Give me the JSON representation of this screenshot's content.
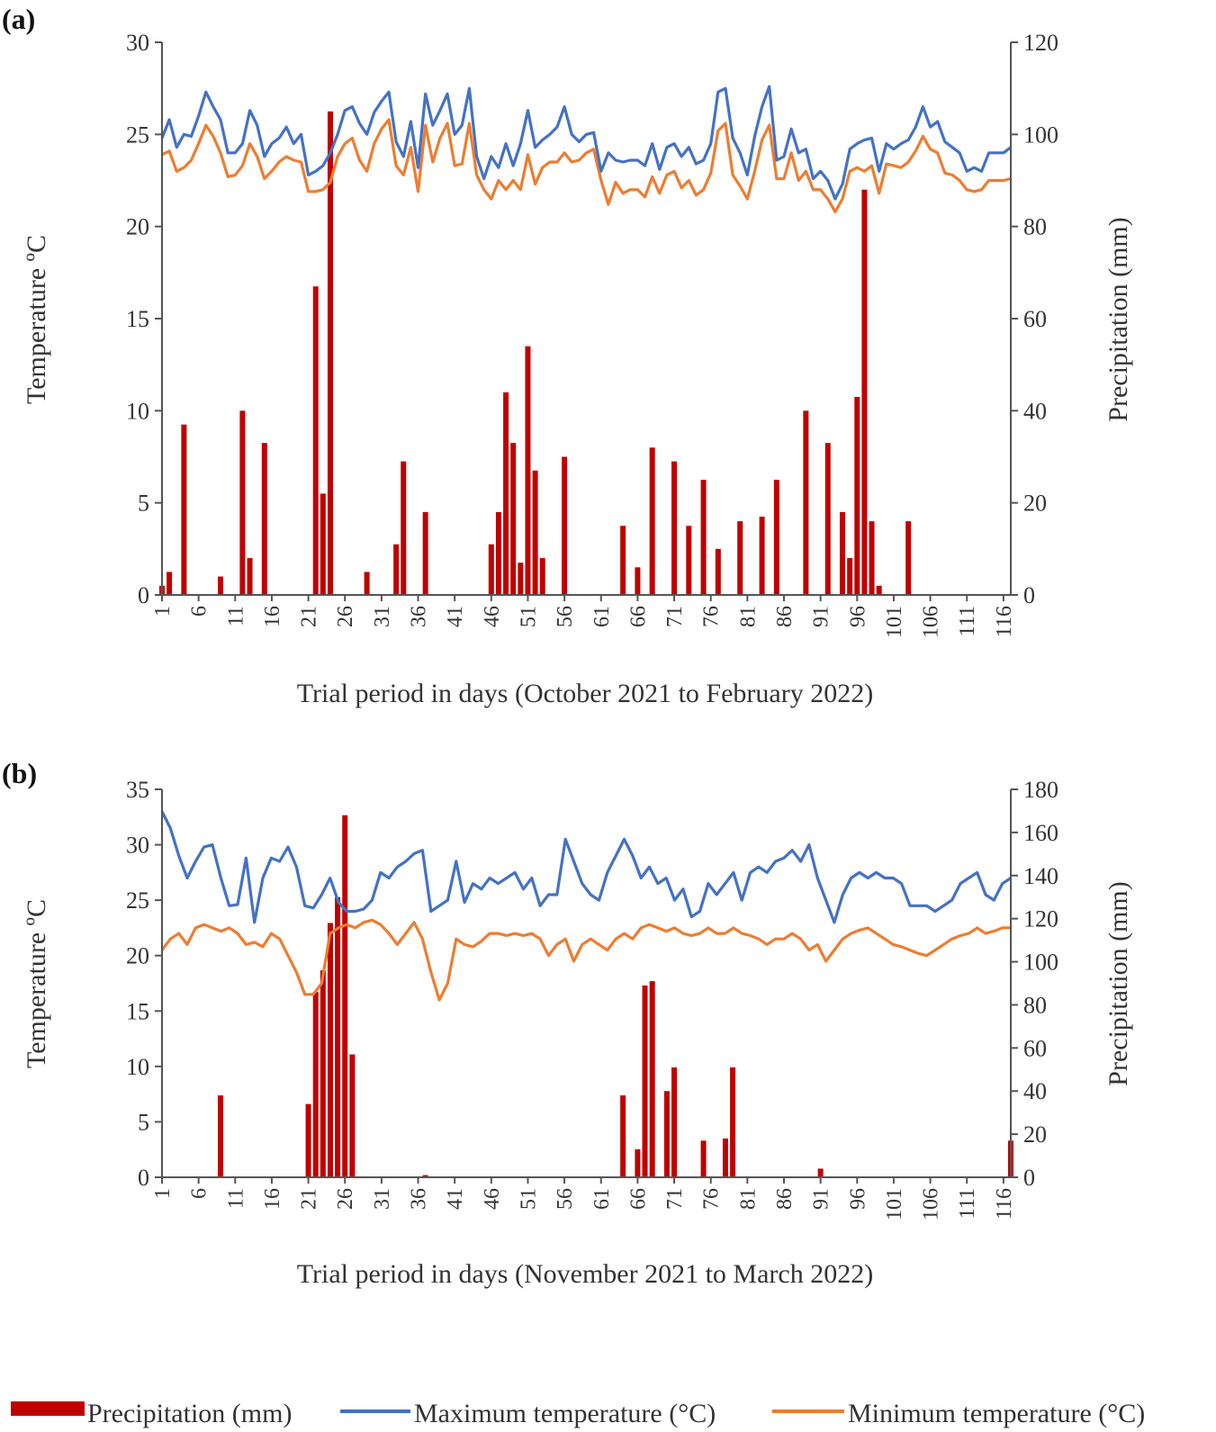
{
  "chart_data": [
    {
      "panel_label": "(a)",
      "type": "bar+line",
      "xlabel": "Trial period in days (October 2021  to February 2022)",
      "ylabel_left": "Temperature ºC",
      "ylabel_right": "Precipitation (mm)",
      "x_range": [
        1,
        117
      ],
      "x_ticks": [
        "1",
        "6",
        "11",
        "16",
        "21",
        "26",
        "31",
        "36",
        "41",
        "46",
        "51",
        "56",
        "61",
        "66",
        "71",
        "76",
        "81",
        "86",
        "91",
        "96",
        "101",
        "106",
        "111",
        "116"
      ],
      "ylim_left": [
        0,
        30
      ],
      "yticks_left": [
        "0",
        "5",
        "10",
        "15",
        "20",
        "25",
        "30"
      ],
      "ylim_right": [
        0,
        120
      ],
      "yticks_right": [
        "0",
        "20",
        "40",
        "60",
        "80",
        "100",
        "120"
      ],
      "series": [
        {
          "name": "Maximum temperature (°C)",
          "type": "line",
          "axis": "left",
          "color": "#4472C4",
          "x": [
            1,
            2,
            3,
            4,
            5,
            6,
            7,
            8,
            9,
            10,
            11,
            12,
            13,
            14,
            15,
            16,
            17,
            18,
            19,
            20,
            21,
            22,
            23,
            24,
            25,
            26,
            27,
            28,
            29,
            30,
            31,
            32,
            33,
            34,
            35,
            36,
            37,
            38,
            39,
            40,
            41,
            42,
            43,
            44,
            45,
            46,
            47,
            48,
            49,
            50,
            51,
            52,
            53,
            54,
            55,
            56,
            57,
            58,
            59,
            60,
            61,
            62,
            63,
            64,
            65,
            66,
            67,
            68,
            69,
            70,
            71,
            72,
            73,
            74,
            75,
            76,
            77,
            78,
            79,
            80,
            81,
            82,
            83,
            84,
            85,
            86,
            87,
            88,
            89,
            90,
            91,
            92,
            93,
            94,
            95,
            96,
            97,
            98,
            99,
            100,
            101,
            102,
            103,
            104,
            105,
            106,
            107,
            108,
            109,
            110,
            111,
            112,
            113,
            114,
            115,
            116,
            117
          ],
          "values": [
            24.8,
            25.8,
            24.3,
            25.0,
            24.9,
            26.0,
            27.3,
            26.5,
            25.8,
            24.0,
            24.0,
            24.5,
            26.3,
            25.5,
            23.8,
            24.5,
            24.8,
            25.4,
            24.5,
            25.0,
            22.8,
            23.0,
            23.3,
            24.0,
            25.0,
            26.3,
            26.5,
            25.6,
            25.0,
            26.2,
            26.8,
            27.3,
            24.6,
            23.8,
            25.7,
            23.2,
            27.2,
            25.5,
            26.3,
            27.2,
            25.0,
            25.5,
            27.5,
            23.8,
            22.6,
            23.8,
            23.2,
            24.5,
            23.3,
            24.5,
            26.3,
            24.3,
            24.7,
            25.0,
            25.4,
            26.5,
            25.0,
            24.6,
            25.0,
            25.1,
            23.0,
            24.0,
            23.6,
            23.5,
            23.6,
            23.6,
            23.3,
            24.5,
            23.1,
            24.3,
            24.5,
            23.8,
            24.3,
            23.4,
            23.6,
            24.5,
            27.3,
            27.5,
            24.8,
            24.0,
            22.8,
            24.9,
            26.5,
            27.6,
            23.6,
            23.8,
            25.3,
            24.0,
            24.2,
            22.6,
            23.0,
            22.5,
            21.5,
            22.3,
            24.2,
            24.5,
            24.7,
            24.8,
            23.0,
            24.5,
            24.2,
            24.5,
            24.7,
            25.4,
            26.5,
            25.4,
            25.7,
            24.6,
            24.3,
            24.0,
            23.0,
            23.2,
            23.0,
            24.0,
            24.0,
            24.0,
            24.3
          ],
          "x_note": "x runs day 1..117"
        },
        {
          "name": "Minimum temperature (°C)",
          "type": "line",
          "axis": "left",
          "color": "#ED7D31",
          "values": [
            23.9,
            24.1,
            23.0,
            23.2,
            23.6,
            24.5,
            25.5,
            24.9,
            24.0,
            22.7,
            22.8,
            23.3,
            24.5,
            23.8,
            22.6,
            23.0,
            23.5,
            23.8,
            23.6,
            23.5,
            21.9,
            21.9,
            22.0,
            22.4,
            23.8,
            24.5,
            24.8,
            23.6,
            23.0,
            24.5,
            25.3,
            25.8,
            23.3,
            22.8,
            24.3,
            21.9,
            25.5,
            23.5,
            24.8,
            25.6,
            23.3,
            23.4,
            25.6,
            22.8,
            22.0,
            21.5,
            22.5,
            22.0,
            22.5,
            22.0,
            23.9,
            22.3,
            23.2,
            23.5,
            23.5,
            24.0,
            23.5,
            23.6,
            24.0,
            24.2,
            22.5,
            21.2,
            22.4,
            21.8,
            22.0,
            22.0,
            21.6,
            22.7,
            21.8,
            22.8,
            23.0,
            22.1,
            22.5,
            21.7,
            22.0,
            22.9,
            25.2,
            25.6,
            22.8,
            22.2,
            21.5,
            23.0,
            24.7,
            25.5,
            22.6,
            22.6,
            24.0,
            22.5,
            23.0,
            22.0,
            22.0,
            21.5,
            20.8,
            21.5,
            23.0,
            23.2,
            23.0,
            23.3,
            21.8,
            23.4,
            23.3,
            23.2,
            23.5,
            24.1,
            24.9,
            24.2,
            24.0,
            22.9,
            22.8,
            22.5,
            22.0,
            21.9,
            22.0,
            22.5,
            22.5,
            22.5,
            22.6
          ]
        },
        {
          "name": "Precipitation (mm)",
          "type": "bar",
          "axis": "right",
          "color": "#C00000",
          "x": [
            1,
            2,
            4,
            9,
            12,
            13,
            15,
            22,
            23,
            24,
            29,
            33,
            34,
            37,
            46,
            47,
            48,
            49,
            50,
            51,
            52,
            53,
            56,
            64,
            66,
            68,
            71,
            73,
            75,
            77,
            80,
            83,
            85,
            89,
            92,
            94,
            95,
            96,
            97,
            98,
            99,
            103,
            105,
            110,
            115
          ],
          "values": [
            2,
            5,
            37,
            4,
            40,
            8,
            33,
            67,
            22,
            105,
            5,
            11,
            29,
            18,
            11,
            18,
            44,
            33,
            7,
            54,
            27,
            8,
            30,
            15,
            6,
            32,
            29,
            15,
            25,
            10,
            16,
            17,
            25,
            40,
            33,
            18,
            8,
            43,
            88,
            16,
            2,
            16,
            0,
            0,
            0
          ]
        }
      ]
    },
    {
      "panel_label": "(b)",
      "type": "bar+line",
      "xlabel": "Trial period in days (November  2021  to March 2022)",
      "ylabel_left": "Temperature ºC",
      "ylabel_right": "Precipitation (mm)",
      "x_range": [
        1,
        117
      ],
      "x_ticks": [
        "1",
        "6",
        "11",
        "16",
        "21",
        "26",
        "31",
        "36",
        "41",
        "46",
        "51",
        "56",
        "61",
        "66",
        "71",
        "76",
        "81",
        "86",
        "91",
        "96",
        "101",
        "106",
        "111",
        "116"
      ],
      "ylim_left": [
        0,
        35
      ],
      "yticks_left": [
        "0",
        "5",
        "10",
        "15",
        "20",
        "25",
        "30",
        "35"
      ],
      "ylim_right": [
        0,
        180
      ],
      "yticks_right": [
        "0",
        "20",
        "40",
        "60",
        "80",
        "100",
        "120",
        "140",
        "160",
        "180"
      ],
      "series": [
        {
          "name": "Maximum temperature (°C)",
          "type": "line",
          "axis": "left",
          "color": "#4472C4",
          "values": [
            33.0,
            31.5,
            29.0,
            27.0,
            28.5,
            29.8,
            30.0,
            27.0,
            24.5,
            24.6,
            28.8,
            23.0,
            27.0,
            28.8,
            28.5,
            29.8,
            28.0,
            24.5,
            24.3,
            25.5,
            27.0,
            24.8,
            24.0,
            24.0,
            24.2,
            25.0,
            27.5,
            27.0,
            28.0,
            28.5,
            29.2,
            29.5,
            24.0,
            24.5,
            25.0,
            28.5,
            24.8,
            26.5,
            26.0,
            27.0,
            26.5,
            27.0,
            27.5,
            26.0,
            27.0,
            24.5,
            25.5,
            25.5,
            30.5,
            28.5,
            26.5,
            25.5,
            25.0,
            27.5,
            29.0,
            30.5,
            29.0,
            27.0,
            28.0,
            26.5,
            27.0,
            25.0,
            26.0,
            23.5,
            24.0,
            26.5,
            25.5,
            26.5,
            27.5,
            25.0,
            27.5,
            28.0,
            27.5,
            28.5,
            28.8,
            29.5,
            28.5,
            30.0,
            27.0,
            25.0,
            23.0,
            25.5,
            27.0,
            27.5,
            27.0,
            27.5,
            27.0,
            27.0,
            26.5,
            24.5,
            24.5,
            24.5,
            24.0,
            24.5,
            25.0,
            26.5,
            27.0,
            27.5,
            25.5,
            25.0,
            26.5,
            27.0
          ],
          "x_note": "x runs day 1..102 scaled across axis"
        },
        {
          "name": "Minimum temperature (°C)",
          "type": "line",
          "axis": "left",
          "color": "#ED7D31",
          "values": [
            20.5,
            21.5,
            22.0,
            21.0,
            22.5,
            22.8,
            22.5,
            22.2,
            22.5,
            22.0,
            21.0,
            21.2,
            20.8,
            22.0,
            21.5,
            20.0,
            18.5,
            16.5,
            16.5,
            17.5,
            22.0,
            22.5,
            22.8,
            22.5,
            23.0,
            23.2,
            22.8,
            22.0,
            21.0,
            22.0,
            23.0,
            21.5,
            18.5,
            16.0,
            17.5,
            21.5,
            21.0,
            20.8,
            21.3,
            22.0,
            22.0,
            21.8,
            22.0,
            21.8,
            22.0,
            21.5,
            20.0,
            21.0,
            21.5,
            19.5,
            21.0,
            21.5,
            21.0,
            20.5,
            21.5,
            22.0,
            21.5,
            22.5,
            22.8,
            22.5,
            22.2,
            22.5,
            22.0,
            21.8,
            22.0,
            22.5,
            22.0,
            22.0,
            22.5,
            22.0,
            21.8,
            21.5,
            21.0,
            21.5,
            21.5,
            22.0,
            21.5,
            20.5,
            21.0,
            19.5,
            20.5,
            21.5,
            22.0,
            22.3,
            22.5,
            22.0,
            21.5,
            21.0,
            20.8,
            20.5,
            20.2,
            20.0,
            20.5,
            21.0,
            21.5,
            21.8,
            22.0,
            22.5,
            22.0,
            22.2,
            22.5,
            22.5
          ]
        },
        {
          "name": "Precipitation (mm)",
          "type": "bar",
          "axis": "right",
          "color": "#C00000",
          "x": [
            9,
            21,
            22,
            23,
            24,
            25,
            26,
            27,
            37,
            64,
            66,
            67,
            68,
            70,
            71,
            75,
            78,
            79,
            91,
            117
          ],
          "values": [
            38,
            34,
            86,
            96,
            118,
            130,
            168,
            57,
            1,
            38,
            13,
            89,
            91,
            40,
            51,
            17,
            18,
            51,
            4,
            17
          ]
        }
      ]
    }
  ],
  "legend": {
    "items": [
      {
        "label": "Precipitation (mm)",
        "color": "#C00000",
        "shape": "bar"
      },
      {
        "label": "Maximum temperature (°C)",
        "color": "#4472C4",
        "shape": "line"
      },
      {
        "label": "Minimum temperature (°C)",
        "color": "#ED7D31",
        "shape": "line"
      }
    ]
  }
}
